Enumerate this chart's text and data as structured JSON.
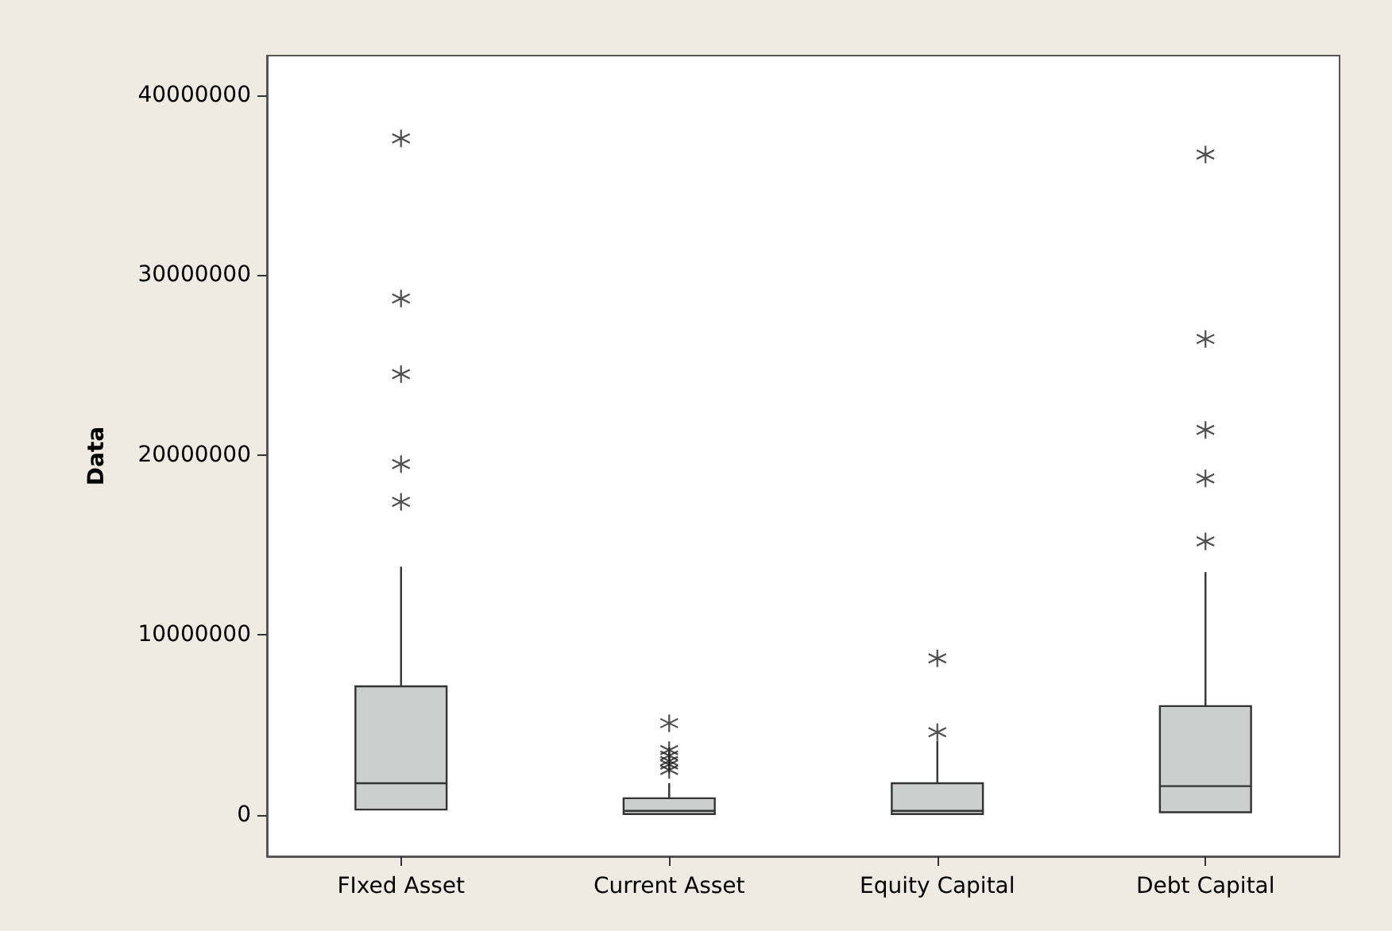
{
  "chart_data": {
    "type": "box",
    "ylabel": "Data",
    "categories": [
      "FIxed Asset",
      "Current Asset",
      "Equity Capital",
      "Debt Capital"
    ],
    "color": "#cdcfce",
    "marker": "star",
    "grid": false,
    "boxes": [
      {
        "low": 300000,
        "q1": 300000,
        "median": 1760000,
        "q3": 7150000,
        "high": 13800000,
        "outliers": [
          17400000,
          19500000,
          24500000,
          28700000,
          37600000
        ]
      },
      {
        "low": 50000,
        "q1": 50000,
        "median": 230000,
        "q3": 930000,
        "high": 1760000,
        "outliers": [
          2500000,
          2800000,
          3000000,
          3300000,
          3600000,
          5100000
        ]
      },
      {
        "low": 50000,
        "q1": 50000,
        "median": 230000,
        "q3": 1760000,
        "high": 4100000,
        "outliers": [
          4600000,
          8700000
        ]
      },
      {
        "low": 150000,
        "q1": 150000,
        "median": 1600000,
        "q3": 6050000,
        "high": 13500000,
        "outliers": [
          15200000,
          18700000,
          21400000,
          26450000,
          36700000
        ]
      }
    ],
    "ylim": [
      -2300000,
      42200000
    ],
    "yticks": [
      0,
      10000000,
      20000000,
      30000000,
      40000000
    ]
  }
}
